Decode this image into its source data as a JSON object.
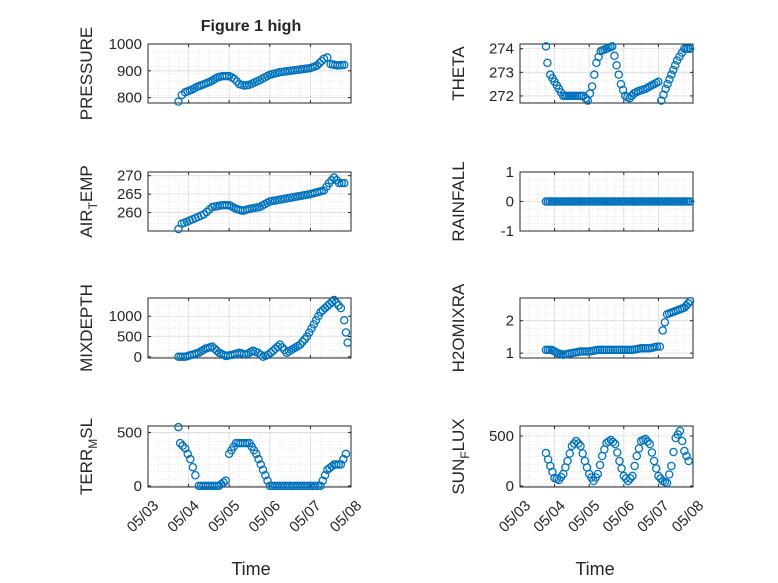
{
  "figure": {
    "title": "Figure 1 high",
    "xlabel": "Time"
  },
  "chart_data": [
    {
      "type": "scatter",
      "ylabel": "PRESSURE",
      "xlim": [
        "05/03",
        "05/08"
      ],
      "ylim": [
        780,
        1000
      ],
      "yticks": [
        800,
        900,
        1000
      ],
      "yticklabels": [
        "800",
        "900",
        "1000"
      ],
      "xticks": [
        "05/03",
        "05/04",
        "05/05",
        "05/06",
        "05/07",
        "05/08"
      ],
      "grid": true,
      "color": "#0072BD",
      "series": [
        {
          "x": [
            "05/03 18:00",
            "05/03 20:00",
            "05/03 22:00",
            "05/04 02:00",
            "05/04 05:00",
            "05/04 09:00",
            "05/04 13:00",
            "05/04 17:00",
            "05/04 20:00",
            "05/05 00:00",
            "05/05 03:00",
            "05/05 06:00",
            "05/05 09:00",
            "05/05 12:00",
            "05/05 18:00",
            "05/06 00:00",
            "05/06 06:00",
            "05/06 12:00",
            "05/06 18:00",
            "05/07 00:00",
            "05/07 04:00",
            "05/07 08:00",
            "05/07 10:00",
            "05/07 12:00",
            "05/07 16:00",
            "05/07 20:00"
          ],
          "values": [
            785,
            810,
            820,
            830,
            840,
            850,
            860,
            875,
            880,
            880,
            870,
            850,
            845,
            848,
            865,
            885,
            895,
            900,
            905,
            910,
            920,
            945,
            950,
            925,
            920,
            922
          ]
        }
      ]
    },
    {
      "type": "scatter",
      "ylabel": "THETA",
      "xlim": [
        "05/03",
        "05/08"
      ],
      "ylim": [
        271.7,
        274.2
      ],
      "yticks": [
        272,
        273,
        274
      ],
      "yticklabels": [
        "272",
        "273",
        "274"
      ],
      "xticks": [
        "05/03",
        "05/04",
        "05/05",
        "05/06",
        "05/07",
        "05/08"
      ],
      "grid": true,
      "color": "#0072BD",
      "series": [
        {
          "x": [
            "05/03 18:00",
            "05/03 19:00",
            "05/03 21:00",
            "05/04 00:00",
            "05/04 03:00",
            "05/04 06:00",
            "05/04 10:00",
            "05/04 14:00",
            "05/04 20:00",
            "05/04 23:00",
            "05/05 02:00",
            "05/05 05:00",
            "05/05 08:00",
            "05/05 12:00",
            "05/05 16:00",
            "05/05 19:00",
            "05/05 22:00",
            "05/06 01:00",
            "05/06 04:00",
            "05/06 07:00",
            "05/06 10:00",
            "05/06 15:00",
            "05/06 21:00",
            "05/07 00:00",
            "05/07 02:00",
            "05/07 05:00",
            "05/07 09:00",
            "05/07 13:00",
            "05/07 18:00",
            "05/07 22:00"
          ],
          "values": [
            274.1,
            273.4,
            272.9,
            272.6,
            272.3,
            272.0,
            272.0,
            272.0,
            272.0,
            271.8,
            272.4,
            273.4,
            273.9,
            274.0,
            274.1,
            273.3,
            272.5,
            272.0,
            271.9,
            272.1,
            272.2,
            272.3,
            272.5,
            272.6,
            271.8,
            272.3,
            272.9,
            273.5,
            274.0,
            274.0
          ]
        }
      ]
    },
    {
      "type": "scatter",
      "ylabel": "AIR_TEMP",
      "xlim": [
        "05/03",
        "05/08"
      ],
      "ylim": [
        255,
        271
      ],
      "yticks": [
        260,
        265,
        270
      ],
      "yticklabels": [
        "260",
        "265",
        "270"
      ],
      "xticks": [
        "05/03",
        "05/04",
        "05/05",
        "05/06",
        "05/07",
        "05/08"
      ],
      "grid": true,
      "color": "#0072BD",
      "series": [
        {
          "x": [
            "05/03 18:00",
            "05/03 20:00",
            "05/03 23:00",
            "05/04 04:00",
            "05/04 09:00",
            "05/04 14:00",
            "05/04 20:00",
            "05/05 00:00",
            "05/05 04:00",
            "05/05 08:00",
            "05/05 12:00",
            "05/05 18:00",
            "05/06 00:00",
            "05/06 06:00",
            "05/06 12:00",
            "05/06 18:00",
            "05/07 00:00",
            "05/07 04:00",
            "05/07 08:00",
            "05/07 11:00",
            "05/07 14:00",
            "05/07 17:00",
            "05/07 20:00"
          ],
          "values": [
            255.5,
            257.0,
            257.5,
            258.5,
            259.5,
            261.5,
            262.0,
            262.0,
            261.0,
            260.5,
            261.0,
            261.5,
            263.0,
            263.5,
            264.0,
            264.5,
            265.0,
            265.5,
            266.0,
            268.0,
            269.5,
            268.0,
            268.0
          ]
        }
      ]
    },
    {
      "type": "scatter",
      "ylabel": "RAINFALL",
      "xlim": [
        "05/03",
        "05/08"
      ],
      "ylim": [
        -1,
        1
      ],
      "yticks": [
        -1,
        0,
        1
      ],
      "yticklabels": [
        "-1",
        "0",
        "1"
      ],
      "xticks": [
        "05/03",
        "05/04",
        "05/05",
        "05/06",
        "05/07",
        "05/08"
      ],
      "grid": true,
      "color": "#0072BD",
      "series": [
        {
          "x": [
            "05/03 18:00",
            "05/03 22:00",
            "05/04 02:00",
            "05/04 06:00",
            "05/04 10:00",
            "05/04 14:00",
            "05/04 18:00",
            "05/04 22:00",
            "05/05 02:00",
            "05/05 06:00",
            "05/05 10:00",
            "05/05 14:00",
            "05/05 18:00",
            "05/05 22:00",
            "05/06 02:00",
            "05/06 06:00",
            "05/06 10:00",
            "05/06 14:00",
            "05/06 18:00",
            "05/06 22:00",
            "05/07 02:00",
            "05/07 06:00",
            "05/07 10:00",
            "05/07 14:00",
            "05/07 18:00",
            "05/07 22:00"
          ],
          "values": [
            0,
            0,
            0,
            0,
            0,
            0,
            0,
            0,
            0,
            0,
            0,
            0,
            0,
            0,
            0,
            0,
            0,
            0,
            0,
            0,
            0,
            0,
            0,
            0,
            0,
            0
          ]
        }
      ]
    },
    {
      "type": "scatter",
      "ylabel": "MIXDEPTH",
      "xlim": [
        "05/03",
        "05/08"
      ],
      "ylim": [
        -30,
        1450
      ],
      "yticks": [
        0,
        500,
        1000
      ],
      "yticklabels": [
        "0",
        "500",
        "1000"
      ],
      "xticks": [
        "05/03",
        "05/04",
        "05/05",
        "05/06",
        "05/07",
        "05/08"
      ],
      "grid": true,
      "color": "#0072BD",
      "series": [
        {
          "x": [
            "05/03 18:00",
            "05/03 22:00",
            "05/04 02:00",
            "05/04 06:00",
            "05/04 10:00",
            "05/04 14:00",
            "05/04 18:00",
            "05/04 22:00",
            "05/05 02:00",
            "05/05 06:00",
            "05/05 10:00",
            "05/05 14:00",
            "05/05 17:00",
            "05/05 20:00",
            "05/05 23:00",
            "05/06 02:00",
            "05/06 06:00",
            "05/06 10:00",
            "05/06 14:00",
            "05/06 18:00",
            "05/06 22:00",
            "05/07 02:00",
            "05/07 06:00",
            "05/07 10:00",
            "05/07 14:00",
            "05/07 18:00",
            "05/07 20:00",
            "05/07 21:00",
            "05/07 22:00"
          ],
          "values": [
            0,
            0,
            50,
            100,
            200,
            250,
            100,
            20,
            50,
            100,
            50,
            150,
            100,
            0,
            50,
            150,
            300,
            100,
            200,
            300,
            500,
            800,
            1100,
            1250,
            1400,
            1200,
            900,
            600,
            350
          ]
        }
      ]
    },
    {
      "type": "scatter",
      "ylabel": "H2OMIXRA",
      "xlim": [
        "05/03",
        "05/08"
      ],
      "ylim": [
        0.85,
        2.7
      ],
      "yticks": [
        1,
        2
      ],
      "yticklabels": [
        "1",
        "2"
      ],
      "xticks": [
        "05/03",
        "05/04",
        "05/05",
        "05/06",
        "05/07",
        "05/08"
      ],
      "grid": true,
      "color": "#0072BD",
      "series": [
        {
          "x": [
            "05/03 18:00",
            "05/03 22:00",
            "05/04 02:00",
            "05/04 06:00",
            "05/04 12:00",
            "05/04 18:00",
            "05/05 00:00",
            "05/05 06:00",
            "05/05 12:00",
            "05/05 18:00",
            "05/06 00:00",
            "05/06 06:00",
            "05/06 12:00",
            "05/06 18:00",
            "05/06 23:00",
            "05/07 01:00",
            "05/07 03:00",
            "05/07 06:00",
            "05/07 12:00",
            "05/07 18:00",
            "05/07 22:00"
          ],
          "values": [
            1.1,
            1.1,
            1.0,
            0.95,
            1.0,
            1.05,
            1.05,
            1.1,
            1.1,
            1.1,
            1.1,
            1.1,
            1.15,
            1.15,
            1.2,
            1.2,
            1.7,
            2.2,
            2.3,
            2.4,
            2.6
          ]
        }
      ]
    },
    {
      "type": "scatter",
      "ylabel": "TERR_MSL",
      "xlim": [
        "05/03",
        "05/08"
      ],
      "ylim": [
        -10,
        560
      ],
      "yticks": [
        0,
        500
      ],
      "yticklabels": [
        "0",
        "500"
      ],
      "xticks": [
        "05/03",
        "05/04",
        "05/05",
        "05/06",
        "05/07",
        "05/08"
      ],
      "grid": true,
      "color": "#0072BD",
      "series": [
        {
          "x": [
            "05/03 18:00",
            "05/03 19:00",
            "05/03 22:00",
            "05/04 01:00",
            "05/04 04:00",
            "05/04 06:00",
            "05/04 10:00",
            "05/04 14:00",
            "05/04 18:00",
            "05/04 22:00",
            "05/05 00:00",
            "05/05 04:00",
            "05/05 08:00",
            "05/05 12:00",
            "05/05 16:00",
            "05/05 20:00",
            "05/06 00:00",
            "05/06 06:00",
            "05/06 12:00",
            "05/06 18:00",
            "05/07 00:00",
            "05/07 06:00",
            "05/07 10:00",
            "05/07 14:00",
            "05/07 18:00",
            "05/07 21:00"
          ],
          "values": [
            550,
            400,
            350,
            250,
            100,
            0,
            0,
            0,
            0,
            50,
            300,
            400,
            400,
            400,
            300,
            150,
            0,
            0,
            0,
            0,
            0,
            0,
            150,
            200,
            200,
            300
          ]
        }
      ]
    },
    {
      "type": "scatter",
      "ylabel": "SUN_FLUX",
      "xlim": [
        "05/03",
        "05/08"
      ],
      "ylim": [
        -10,
        600
      ],
      "yticks": [
        0,
        500
      ],
      "yticklabels": [
        "0",
        "500"
      ],
      "xticks": [
        "05/03",
        "05/04",
        "05/05",
        "05/06",
        "05/07",
        "05/08"
      ],
      "grid": true,
      "color": "#0072BD",
      "series": [
        {
          "x": [
            "05/03 18:00",
            "05/03 21:00",
            "05/04 00:00",
            "05/04 03:00",
            "05/04 06:00",
            "05/04 09:00",
            "05/04 12:00",
            "05/04 15:00",
            "05/04 18:00",
            "05/04 21:00",
            "05/05 00:00",
            "05/05 03:00",
            "05/05 06:00",
            "05/05 09:00",
            "05/05 12:00",
            "05/05 15:00",
            "05/05 18:00",
            "05/05 21:00",
            "05/06 00:00",
            "05/06 03:00",
            "05/06 06:00",
            "05/06 09:00",
            "05/06 12:00",
            "05/06 15:00",
            "05/06 18:00",
            "05/06 21:00",
            "05/07 00:00",
            "05/07 03:00",
            "05/07 06:00",
            "05/07 09:00",
            "05/07 12:00",
            "05/07 15:00",
            "05/07 18:00",
            "05/07 21:00"
          ],
          "values": [
            330,
            200,
            80,
            60,
            120,
            250,
            400,
            450,
            400,
            250,
            120,
            50,
            120,
            300,
            430,
            460,
            420,
            250,
            100,
            50,
            100,
            300,
            450,
            470,
            420,
            250,
            100,
            50,
            30,
            200,
            480,
            550,
            350,
            250
          ]
        }
      ]
    }
  ]
}
